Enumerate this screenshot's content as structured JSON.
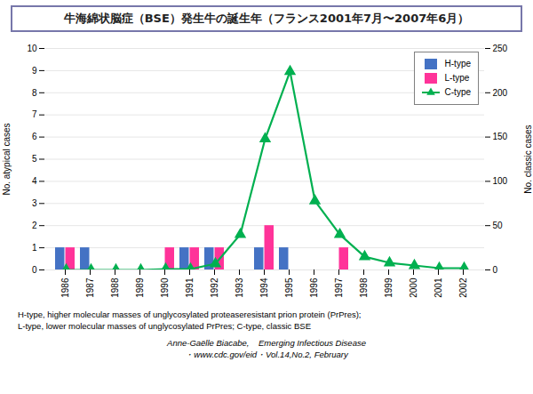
{
  "chart_data": {
    "type": "bar",
    "title": "牛海綿状脳症（BSE）発生牛の誕生年（フランス2001年7月〜2007年6月）",
    "categories": [
      "1986",
      "1987",
      "1988",
      "1989",
      "1990",
      "1991",
      "1992",
      "1993",
      "1994",
      "1995",
      "1996",
      "1997",
      "1998",
      "1999",
      "2000",
      "2001",
      "2002"
    ],
    "series": [
      {
        "name": "H-type",
        "type": "bar",
        "color": "#4472c4",
        "values": [
          1,
          1,
          0,
          0,
          0,
          1,
          1,
          0,
          1,
          1,
          0,
          0,
          0,
          0,
          0,
          0,
          0
        ]
      },
      {
        "name": "L-type",
        "type": "bar",
        "color": "#ff3399",
        "values": [
          1,
          0,
          0,
          0,
          1,
          1,
          1,
          0,
          2,
          0,
          0,
          1,
          0,
          0,
          0,
          0,
          0
        ]
      },
      {
        "name": "C-type",
        "type": "line",
        "axis": "y2",
        "marker": "triangle",
        "color": "#00b050",
        "values": [
          0,
          0,
          0,
          0,
          1,
          1,
          7,
          40,
          148,
          224,
          78,
          40,
          15,
          8,
          5,
          2,
          2
        ]
      }
    ],
    "ylim": [
      0,
      10
    ],
    "yticks": [
      0,
      1,
      2,
      3,
      4,
      5,
      6,
      7,
      8,
      9,
      10
    ],
    "y2lim": [
      0,
      250
    ],
    "y2ticks": [
      0,
      50,
      100,
      150,
      200,
      250
    ],
    "ylabel": "No. atypical cases",
    "y2label": "No. classic cases",
    "grid": true,
    "legend": "upper right",
    "annotations": [
      "H-type, higher molecular masses of unglycosylated proteaseresistant prion protein (PrPres);",
      "L-type, lower molecular masses of unglycosylated PrPres; C-type, classic BSE",
      "Anne-Gaëlle Biacabe,    Emerging Infectious Disease",
      "・www.cdc.gov/eid・Vol.14,No.2, February"
    ]
  }
}
